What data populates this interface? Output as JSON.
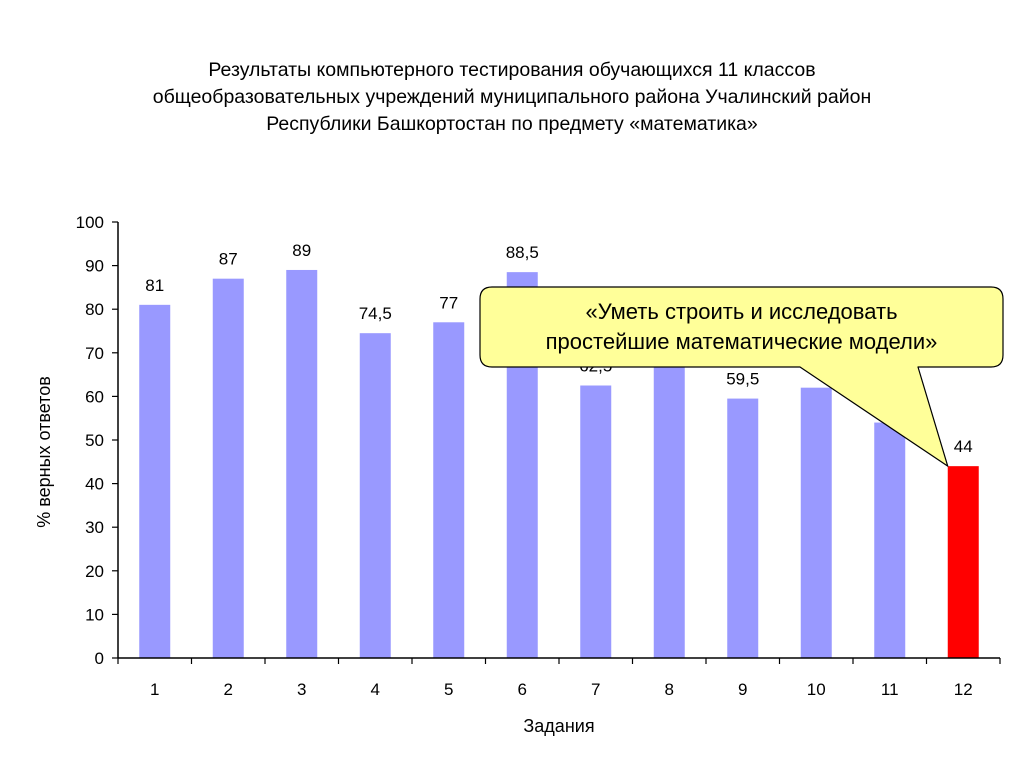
{
  "chart_data": {
    "type": "bar",
    "title_lines": [
      "Результаты компьютерного тестирования обучающихся 11 классов",
      "общеобразовательных учреждений муниципального района Учалинский район",
      "Республики Башкортостан по предмету «математика»"
    ],
    "xlabel": "Задания",
    "ylabel": "% верных ответов",
    "ylim": [
      0,
      100
    ],
    "yticks": [
      0,
      10,
      20,
      30,
      40,
      50,
      60,
      70,
      80,
      90,
      100
    ],
    "categories": [
      "1",
      "2",
      "3",
      "4",
      "5",
      "6",
      "7",
      "8",
      "9",
      "10",
      "11",
      "12"
    ],
    "values": [
      81,
      87,
      89,
      74.5,
      77,
      88.5,
      62.5,
      67,
      59.5,
      62,
      54,
      44
    ],
    "value_labels": [
      "81",
      "87",
      "89",
      "74,5",
      "77",
      "88,5",
      "62,5",
      "",
      "59,5",
      "",
      "",
      "44"
    ],
    "bar_color": "#9999FF",
    "highlight_index": 11,
    "highlight_color": "#FF0000",
    "grid": false,
    "legend": "none"
  },
  "callout": {
    "lines": [
      "«Уметь строить и исследовать",
      "простейшие математические модели»"
    ],
    "fill": "#FFFF99",
    "stroke": "#000000"
  }
}
